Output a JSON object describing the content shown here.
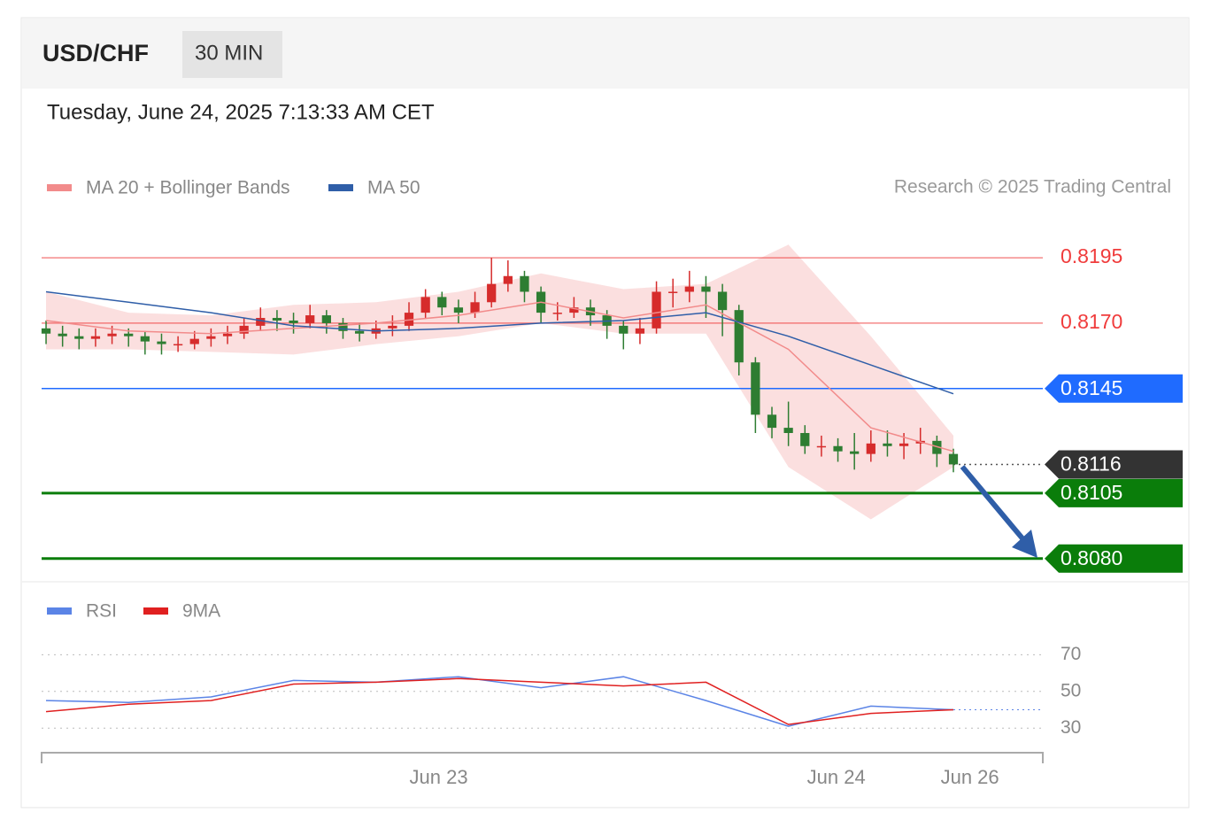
{
  "header": {
    "symbol": "USD/CHF",
    "interval": "30 MIN",
    "timestamp": "Tuesday, June 24, 2025 7:13:33 AM CET",
    "credit": "Research © 2025 Trading Central"
  },
  "chart_data": [
    {
      "type": "candlestick",
      "xlim": [
        -0.27,
        60.42
      ],
      "ylim": [
        0.80718,
        0.82106
      ],
      "up_color": "#d62c2c",
      "down_color": "#2e7d32",
      "ohlc": [
        [
          0.8168,
          0.8171,
          0.8162,
          0.8166
        ],
        [
          0.8166,
          0.8169,
          0.8161,
          0.8165
        ],
        [
          0.8165,
          0.8168,
          0.816,
          0.8164
        ],
        [
          0.8164,
          0.8168,
          0.8161,
          0.8165
        ],
        [
          0.8165,
          0.8169,
          0.8162,
          0.8166
        ],
        [
          0.8166,
          0.8168,
          0.8161,
          0.8165
        ],
        [
          0.8165,
          0.8167,
          0.8158,
          0.8163
        ],
        [
          0.8163,
          0.8166,
          0.8158,
          0.8162
        ],
        [
          0.8162,
          0.8165,
          0.8159,
          0.8162
        ],
        [
          0.8162,
          0.8167,
          0.816,
          0.8164
        ],
        [
          0.8164,
          0.8168,
          0.8161,
          0.8165
        ],
        [
          0.8165,
          0.8169,
          0.8162,
          0.8166
        ],
        [
          0.8166,
          0.8172,
          0.8164,
          0.8169
        ],
        [
          0.8169,
          0.8176,
          0.8167,
          0.8172
        ],
        [
          0.8172,
          0.8175,
          0.8167,
          0.8171
        ],
        [
          0.8171,
          0.8174,
          0.8166,
          0.817
        ],
        [
          0.817,
          0.8177,
          0.8168,
          0.8173
        ],
        [
          0.8173,
          0.8175,
          0.8166,
          0.817
        ],
        [
          0.817,
          0.8172,
          0.8164,
          0.8167
        ],
        [
          0.8167,
          0.817,
          0.8163,
          0.8166
        ],
        [
          0.8166,
          0.8171,
          0.8164,
          0.8168
        ],
        [
          0.8168,
          0.8173,
          0.8165,
          0.8169
        ],
        [
          0.8169,
          0.8178,
          0.8167,
          0.8174
        ],
        [
          0.8174,
          0.8183,
          0.8172,
          0.818
        ],
        [
          0.818,
          0.8182,
          0.8173,
          0.8176
        ],
        [
          0.8176,
          0.8179,
          0.817,
          0.8174
        ],
        [
          0.8174,
          0.8182,
          0.8172,
          0.8178
        ],
        [
          0.8178,
          0.8195,
          0.8176,
          0.8185
        ],
        [
          0.8185,
          0.8194,
          0.8182,
          0.8188
        ],
        [
          0.8188,
          0.819,
          0.8178,
          0.8182
        ],
        [
          0.8182,
          0.8184,
          0.817,
          0.8174
        ],
        [
          0.8174,
          0.8178,
          0.8171,
          0.8174
        ],
        [
          0.8174,
          0.818,
          0.8172,
          0.8176
        ],
        [
          0.8176,
          0.8179,
          0.8169,
          0.8173
        ],
        [
          0.8173,
          0.8175,
          0.8164,
          0.8169
        ],
        [
          0.8169,
          0.8171,
          0.816,
          0.8166
        ],
        [
          0.8166,
          0.8172,
          0.8162,
          0.8168
        ],
        [
          0.8168,
          0.8186,
          0.8166,
          0.8182
        ],
        [
          0.8182,
          0.8187,
          0.8176,
          0.8182
        ],
        [
          0.8182,
          0.819,
          0.8178,
          0.8184
        ],
        [
          0.8184,
          0.8188,
          0.8172,
          0.8182
        ],
        [
          0.8182,
          0.8185,
          0.8165,
          0.8175
        ],
        [
          0.8175,
          0.8177,
          0.815,
          0.8155
        ],
        [
          0.8155,
          0.8157,
          0.8128,
          0.8135
        ],
        [
          0.8135,
          0.8138,
          0.8126,
          0.813
        ],
        [
          0.813,
          0.814,
          0.8123,
          0.8128
        ],
        [
          0.8128,
          0.8131,
          0.812,
          0.8123
        ],
        [
          0.8123,
          0.8127,
          0.8119,
          0.8123
        ],
        [
          0.8123,
          0.8126,
          0.8117,
          0.8121
        ],
        [
          0.8121,
          0.8128,
          0.8114,
          0.812
        ],
        [
          0.812,
          0.8129,
          0.8117,
          0.8124
        ],
        [
          0.8124,
          0.8129,
          0.8119,
          0.8123
        ],
        [
          0.8123,
          0.8128,
          0.8118,
          0.8124
        ],
        [
          0.8124,
          0.813,
          0.812,
          0.8125
        ],
        [
          0.8125,
          0.8127,
          0.8115,
          0.812
        ],
        [
          0.812,
          0.8122,
          0.8113,
          0.8116
        ]
      ],
      "x": [
        0,
        5,
        10,
        15,
        20,
        25,
        30,
        35,
        40,
        45,
        50,
        55
      ],
      "series": [
        {
          "name": "MA 20 + Bollinger Bands",
          "color": "#f28b8b",
          "values": [
            0.8171,
            0.8167,
            0.8166,
            0.8168,
            0.817,
            0.8173,
            0.8178,
            0.8172,
            0.8177,
            0.816,
            0.813,
            0.8121
          ],
          "upper": [
            0.8182,
            0.8174,
            0.8173,
            0.8177,
            0.8178,
            0.8182,
            0.8189,
            0.8183,
            0.8185,
            0.82,
            0.8165,
            0.8127
          ],
          "lower": [
            0.816,
            0.816,
            0.8159,
            0.8158,
            0.8162,
            0.8165,
            0.817,
            0.8166,
            0.8166,
            0.8115,
            0.8095,
            0.8115
          ]
        },
        {
          "name": "MA 50",
          "color": "#2f5ea8",
          "values": [
            0.8182,
            0.8178,
            0.8174,
            0.8169,
            0.8167,
            0.8168,
            0.817,
            0.8171,
            0.8174,
            0.8165,
            0.8154,
            0.8143
          ]
        }
      ],
      "levels": [
        {
          "value": 0.8195,
          "style": "text",
          "color": "#f03c3c"
        },
        {
          "value": 0.817,
          "label": "0.8170",
          "style": "text",
          "color": "#f03c3c"
        },
        {
          "value": 0.8145,
          "style": "box",
          "color": "#1f6bff"
        },
        {
          "value": 0.8116,
          "style": "current",
          "color": "#333333"
        },
        {
          "value": 0.8105,
          "style": "box",
          "color": "#0a7d0a"
        },
        {
          "value": 0.808,
          "label": "0.8080",
          "style": "box",
          "color": "#0a7d0a"
        }
      ]
    },
    {
      "type": "line",
      "xlim": [
        -0.27,
        60.42
      ],
      "ylim": [
        19,
        89
      ],
      "yticks": [
        30,
        50,
        70
      ],
      "xticks": [
        {
          "value": 23.8,
          "label": "Jun 23"
        },
        {
          "value": 47.9,
          "label": "Jun 24"
        },
        {
          "value": 56.0,
          "label": "Jun 26"
        }
      ],
      "x": [
        0,
        5,
        10,
        15,
        20,
        25,
        30,
        35,
        40,
        45,
        50,
        55
      ],
      "series": [
        {
          "name": "RSI",
          "color": "#5b84e6",
          "values": [
            45,
            44,
            47,
            56,
            55,
            58,
            52,
            58,
            45,
            31,
            42,
            40
          ]
        },
        {
          "name": "9MA",
          "color": "#e02020",
          "values": [
            39,
            43,
            45,
            54,
            55,
            57,
            55,
            53,
            55,
            32,
            38,
            40
          ]
        }
      ]
    }
  ]
}
